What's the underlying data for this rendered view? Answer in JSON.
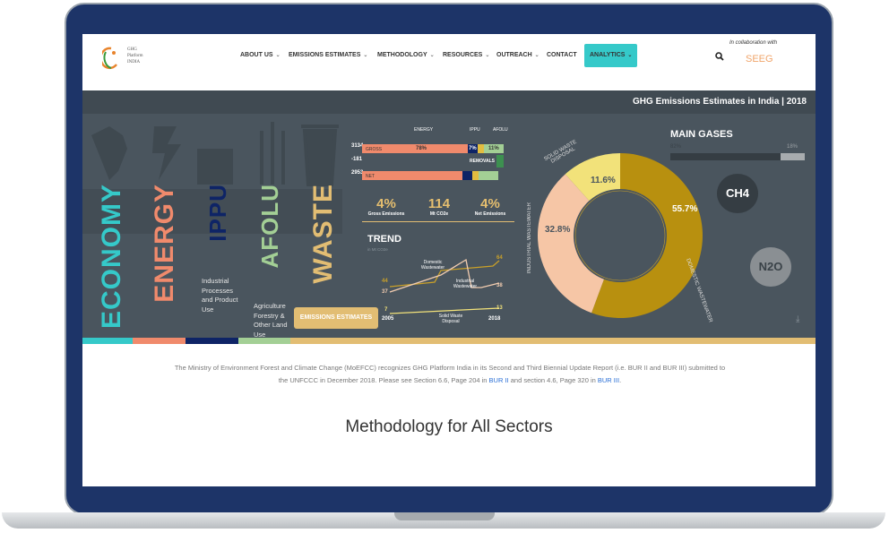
{
  "header": {
    "logo_text": [
      "GHG",
      "Platform",
      "INDIA"
    ],
    "nav": [
      {
        "label": "ABOUT US",
        "chevron": true
      },
      {
        "label": "EMISSIONS ESTIMATES",
        "chevron": true
      },
      {
        "label": "METHODOLOGY",
        "chevron": true
      },
      {
        "label": "RESOURCES",
        "chevron": true
      },
      {
        "label": "OUTREACH",
        "chevron": true
      },
      {
        "label": "CONTACT",
        "chevron": false
      },
      {
        "label": "ANALYTICS",
        "chevron": true
      }
    ],
    "collab_text": "In collaboration with",
    "partner_logo": "SEEG",
    "search_icon": "search-icon",
    "accent": "#35c9c9"
  },
  "infographic": {
    "title": "GHG Emissions Estimates in India | 2018",
    "sectors": [
      {
        "label": "ECONOMY",
        "color": "#35c9c9"
      },
      {
        "label": "ENERGY",
        "color": "#f08a6c"
      },
      {
        "label": "IPPU",
        "color": "#0e2466",
        "desc": "Industrial Processes and Product Use"
      },
      {
        "label": "AFOLU",
        "color": "#a3cf95",
        "desc": "Agriculture Forestry & Other Land Use"
      },
      {
        "label": "WASTE",
        "color": "#e2bd73"
      }
    ],
    "bars": {
      "energy_label": "ENERGY",
      "ippu_label": "IPPU",
      "afolu_label": "AFOLU",
      "gross_value": "3134",
      "removals_value": "-181",
      "net_value": "2953",
      "unit": "Mt CO2e",
      "gross_label": "GROSS",
      "net_label": "NET",
      "removals_label": "REMOVALS",
      "energy_pct": "78%",
      "ippu_pct": "7%",
      "afolu_pct": "11%"
    },
    "stats": [
      {
        "value": "4%",
        "label": "Gross Emissions"
      },
      {
        "value": "114",
        "label": "Mt CO2e"
      },
      {
        "value": "4%",
        "label": "Net Emissions"
      }
    ],
    "trend": {
      "title": "TREND",
      "unit": "in Mt CO2e",
      "start_year": "2005",
      "end_year": "2018",
      "series": [
        {
          "name": "Domestic Wastewater",
          "start": "44",
          "end": "64"
        },
        {
          "name": "Industrial Wastewater",
          "start": "37",
          "end": "38"
        },
        {
          "name": "Solid Waste Disposal",
          "start": "7",
          "end": "13"
        }
      ]
    },
    "button": "EMISSIONS ESTIMATES",
    "donut": [
      {
        "label": "DOMESTIC WASTEWATER",
        "value": 55.7,
        "text": "55.7%",
        "color": "#b8900f"
      },
      {
        "label": "INDUSTRIAL WASTEWATER",
        "value": 32.8,
        "text": "32.8%",
        "color": "#f6c6a6"
      },
      {
        "label": "SOLID WASTE DISPOSAL",
        "value": 11.6,
        "text": "11.6%",
        "color": "#f2e27a"
      }
    ],
    "gases": {
      "title": "MAIN GASES",
      "ch4_pct": "82%",
      "n2o_pct": "18%",
      "ch4_share": 82,
      "ch4": "CH4",
      "n2o": "N2O"
    }
  },
  "intro": {
    "text": "The Ministry of Environment Forest and Climate Change (MoEFCC) recognizes GHG Platform India in its Second and Third Biennial Update Report (i.e. BUR II and BUR III) submitted to the UNFCCC in December 2018. Please see Section 6.6, Page 204 in ",
    "link1": "BUR II",
    "mid": " and section 4.6, Page 320 in ",
    "link2": "BUR III",
    "end": "."
  },
  "section_title": "Methodology for All Sectors"
}
